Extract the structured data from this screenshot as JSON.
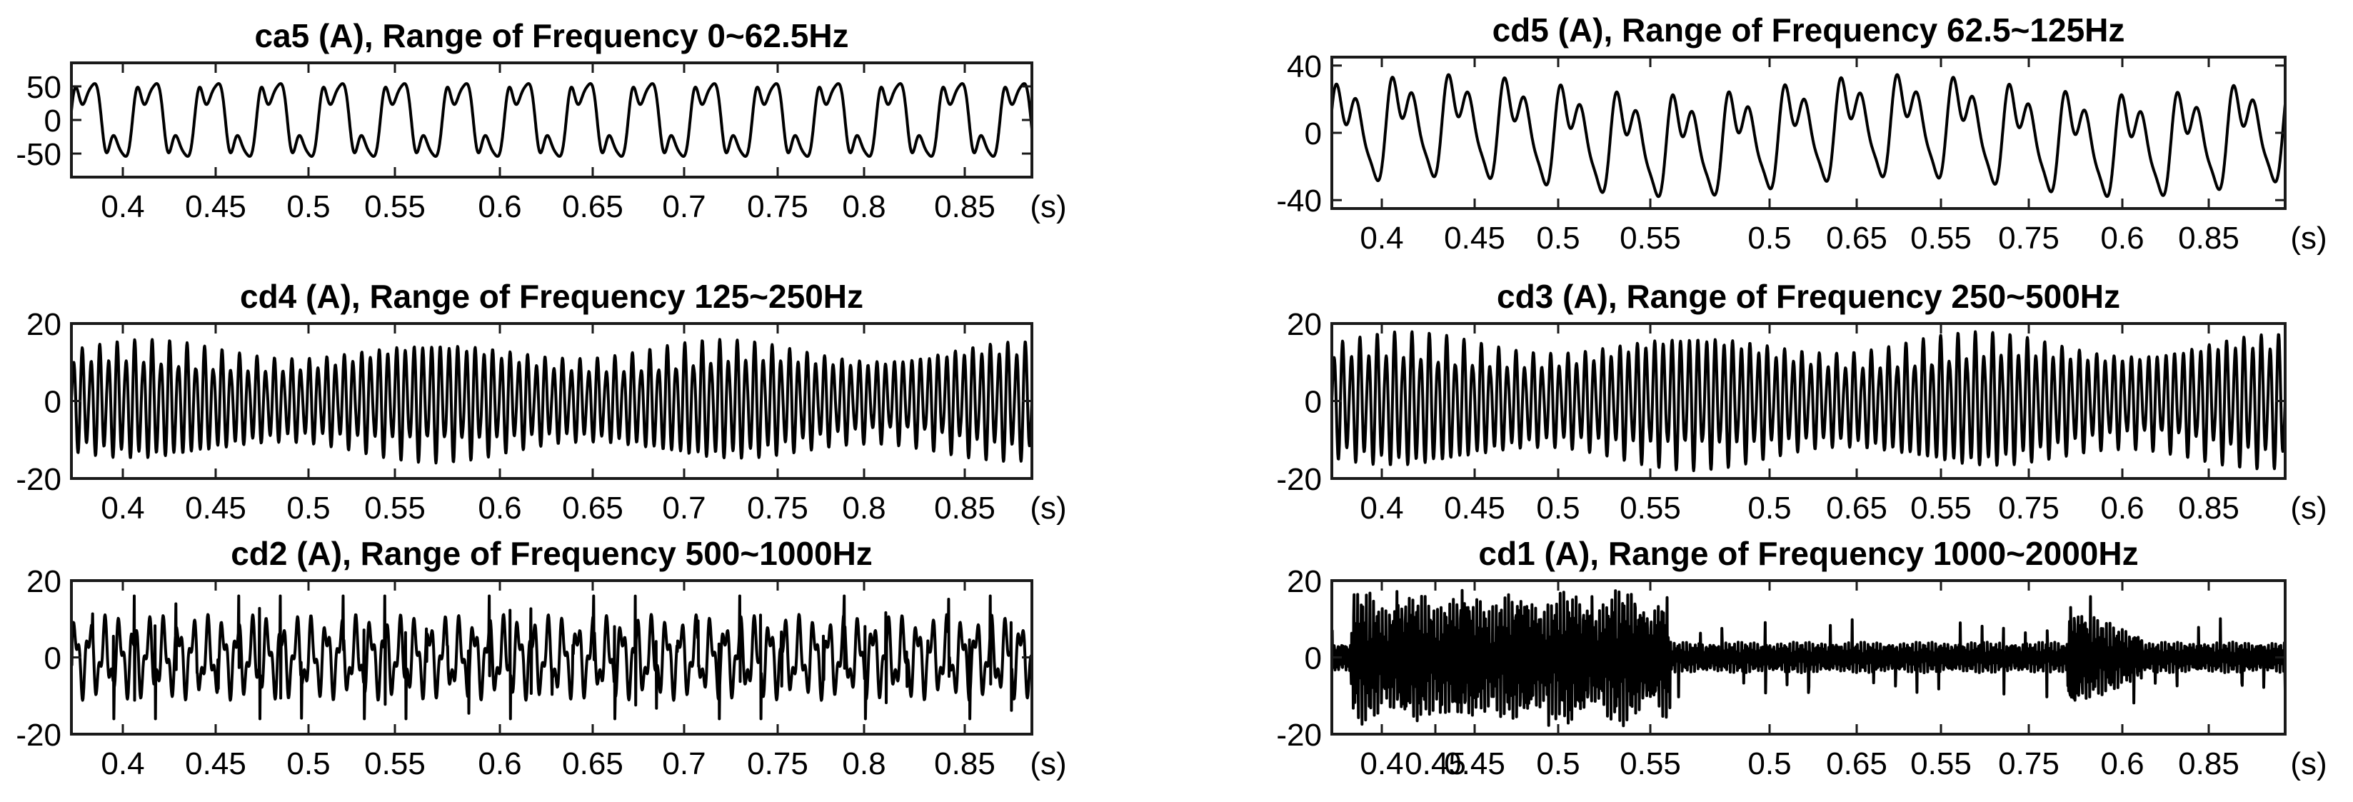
{
  "chart_data": [
    {
      "type": "line",
      "title": "ca5 (A), Range of Frequency 0~62.5Hz",
      "x_ticks": [
        "0.4",
        "0.45",
        "0.5",
        "0.55",
        "0.6",
        "0.65",
        "0.7",
        "0.75",
        "0.8",
        "0.85"
      ],
      "x_unit": "(s)",
      "y_ticks": [
        "50",
        "0",
        "-50"
      ],
      "y_tick_values": [
        50,
        0,
        -50
      ],
      "ylim": [
        -85,
        85
      ],
      "series": [
        {
          "waveform": "fundamental_harmonic",
          "amplitude": 80
        }
      ]
    },
    {
      "type": "line",
      "title": "cd5 (A), Range of Frequency 62.5~125Hz",
      "x_ticks": [
        "0.4",
        "0.45",
        "0.5",
        "0.55",
        "0.5",
        "0.65",
        "0.55",
        "0.75",
        "0.6",
        "0.85"
      ],
      "x_unit": "(s)",
      "y_ticks": [
        "40",
        "0",
        "-40"
      ],
      "y_tick_values": [
        40,
        0,
        -40
      ],
      "ylim": [
        -45,
        45
      ],
      "series": [
        {
          "waveform": "multi_peak_periodic",
          "amplitude": 40
        }
      ]
    },
    {
      "type": "line",
      "title": "cd4 (A), Range of Frequency 125~250Hz",
      "x_ticks": [
        "0.4",
        "0.45",
        "0.5",
        "0.55",
        "0.6",
        "0.65",
        "0.7",
        "0.75",
        "0.8",
        "0.85"
      ],
      "x_unit": "(s)",
      "y_ticks": [
        "20",
        "0",
        "-20"
      ],
      "y_tick_values": [
        20,
        0,
        -20
      ],
      "ylim": [
        -20,
        20
      ],
      "series": [
        {
          "waveform": "dense_oscillation",
          "amplitude": 16
        }
      ]
    },
    {
      "type": "line",
      "title": "cd3 (A), Range of Frequency 250~500Hz",
      "x_ticks": [
        "0.4",
        "0.45",
        "0.5",
        "0.55",
        "0.5",
        "0.65",
        "0.55",
        "0.75",
        "0.6",
        "0.85"
      ],
      "x_unit": "(s)",
      "y_ticks": [
        "20",
        "0",
        "-20"
      ],
      "y_tick_values": [
        20,
        0,
        -20
      ],
      "ylim": [
        -20,
        20
      ],
      "series": [
        {
          "waveform": "dense_oscillation",
          "amplitude": 18
        }
      ]
    },
    {
      "type": "line",
      "title": "cd2 (A), Range of Frequency 500~1000Hz",
      "x_ticks": [
        "0.4",
        "0.45",
        "0.5",
        "0.55",
        "0.6",
        "0.65",
        "0.7",
        "0.75",
        "0.8",
        "0.85"
      ],
      "x_unit": "(s)",
      "y_ticks": [
        "20",
        "0",
        "-20"
      ],
      "y_tick_values": [
        20,
        0,
        -20
      ],
      "ylim": [
        -20,
        20
      ],
      "series": [
        {
          "waveform": "spiky_periodic",
          "amplitude": 16
        }
      ]
    },
    {
      "type": "line",
      "title": "cd1 (A), Range of Frequency 1000~2000Hz",
      "x_ticks": [
        "0.4",
        "0.45",
        "0.45",
        "0.5",
        "0.55",
        "0.5",
        "0.65",
        "0.55",
        "0.75",
        "0.6",
        "0.85"
      ],
      "x_unit": "(s)",
      "y_ticks": [
        "20",
        "0",
        "-20"
      ],
      "y_tick_values": [
        20,
        0,
        -20
      ],
      "ylim": [
        -20,
        20
      ],
      "series": [
        {
          "waveform": "burst_noise",
          "burst_amplitude": 18,
          "baseline_amplitude": 4
        }
      ]
    }
  ]
}
